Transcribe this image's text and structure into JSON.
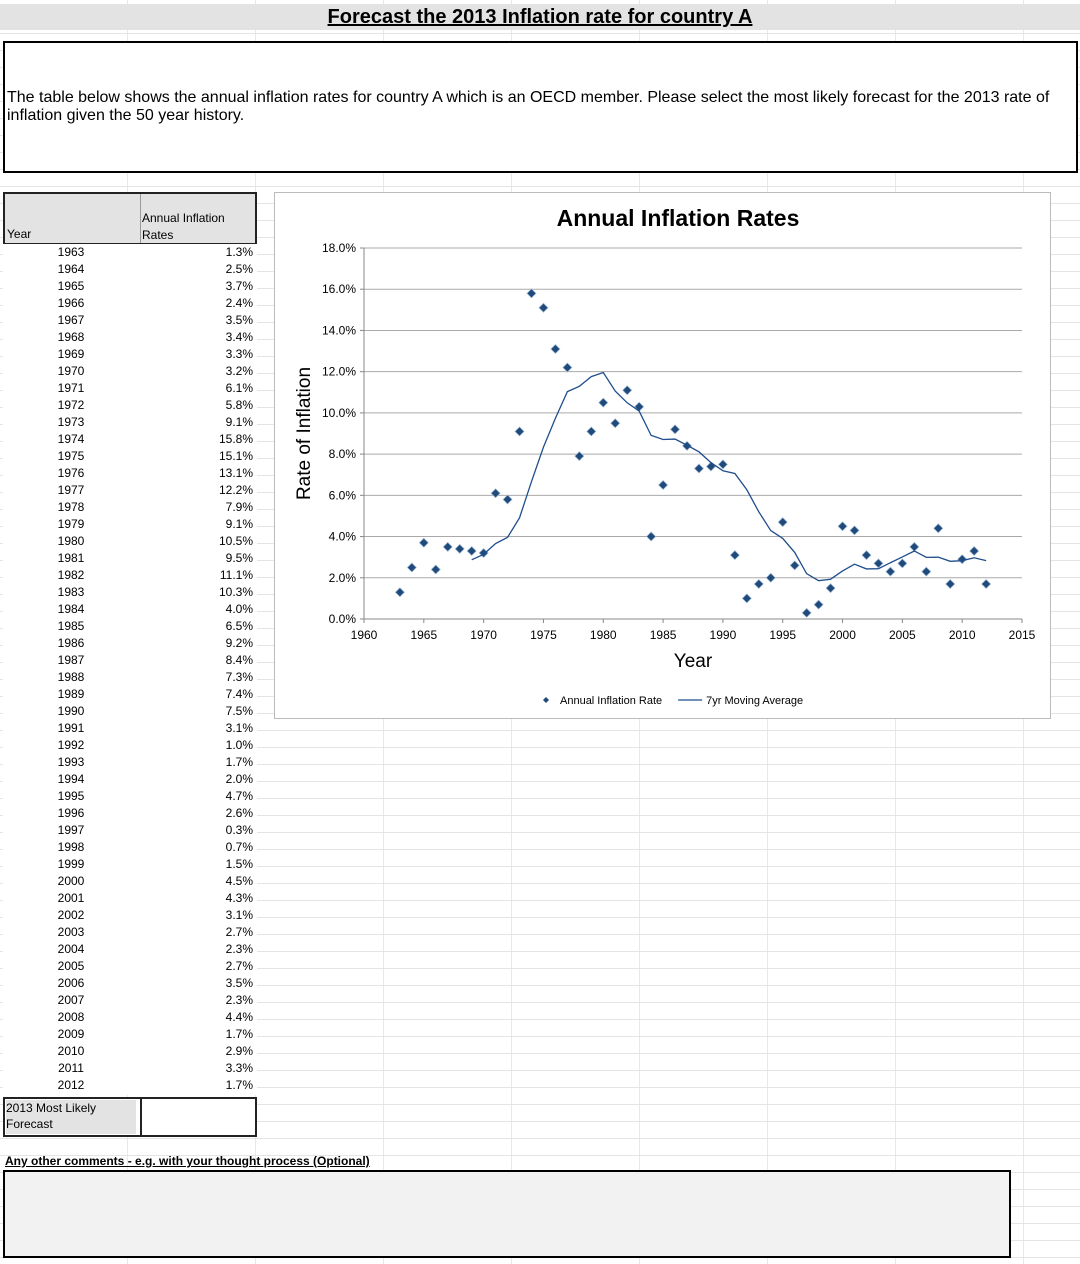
{
  "header": {
    "title": "Forecast the 2013 Inflation rate for country A"
  },
  "instructions": "The table below shows the annual inflation rates for country A which is an OECD member. Please select the most likely forecast for the 2013 rate of inflation given the 50 year history.",
  "table": {
    "headers": [
      "Year",
      "Annual Inflation Rates"
    ],
    "rows": [
      [
        1963,
        "1.3%"
      ],
      [
        1964,
        "2.5%"
      ],
      [
        1965,
        "3.7%"
      ],
      [
        1966,
        "2.4%"
      ],
      [
        1967,
        "3.5%"
      ],
      [
        1968,
        "3.4%"
      ],
      [
        1969,
        "3.3%"
      ],
      [
        1970,
        "3.2%"
      ],
      [
        1971,
        "6.1%"
      ],
      [
        1972,
        "5.8%"
      ],
      [
        1973,
        "9.1%"
      ],
      [
        1974,
        "15.8%"
      ],
      [
        1975,
        "15.1%"
      ],
      [
        1976,
        "13.1%"
      ],
      [
        1977,
        "12.2%"
      ],
      [
        1978,
        "7.9%"
      ],
      [
        1979,
        "9.1%"
      ],
      [
        1980,
        "10.5%"
      ],
      [
        1981,
        "9.5%"
      ],
      [
        1982,
        "11.1%"
      ],
      [
        1983,
        "10.3%"
      ],
      [
        1984,
        "4.0%"
      ],
      [
        1985,
        "6.5%"
      ],
      [
        1986,
        "9.2%"
      ],
      [
        1987,
        "8.4%"
      ],
      [
        1988,
        "7.3%"
      ],
      [
        1989,
        "7.4%"
      ],
      [
        1990,
        "7.5%"
      ],
      [
        1991,
        "3.1%"
      ],
      [
        1992,
        "1.0%"
      ],
      [
        1993,
        "1.7%"
      ],
      [
        1994,
        "2.0%"
      ],
      [
        1995,
        "4.7%"
      ],
      [
        1996,
        "2.6%"
      ],
      [
        1997,
        "0.3%"
      ],
      [
        1998,
        "0.7%"
      ],
      [
        1999,
        "1.5%"
      ],
      [
        2000,
        "4.5%"
      ],
      [
        2001,
        "4.3%"
      ],
      [
        2002,
        "3.1%"
      ],
      [
        2003,
        "2.7%"
      ],
      [
        2004,
        "2.3%"
      ],
      [
        2005,
        "2.7%"
      ],
      [
        2006,
        "3.5%"
      ],
      [
        2007,
        "2.3%"
      ],
      [
        2008,
        "4.4%"
      ],
      [
        2009,
        "1.7%"
      ],
      [
        2010,
        "2.9%"
      ],
      [
        2011,
        "3.3%"
      ],
      [
        2012,
        "1.7%"
      ]
    ],
    "forecast_label": "2013 Most Likely Forecast"
  },
  "comments_label": "Any other comments - e.g. with your thought process (Optional)",
  "chart_data": {
    "type": "scatter",
    "title": "Annual Inflation Rates",
    "x_label": "Year",
    "y_label": "Rate of Inflation",
    "x": [
      1963,
      1964,
      1965,
      1966,
      1967,
      1968,
      1969,
      1970,
      1971,
      1972,
      1973,
      1974,
      1975,
      1976,
      1977,
      1978,
      1979,
      1980,
      1981,
      1982,
      1983,
      1984,
      1985,
      1986,
      1987,
      1988,
      1989,
      1990,
      1991,
      1992,
      1993,
      1994,
      1995,
      1996,
      1997,
      1998,
      1999,
      2000,
      2001,
      2002,
      2003,
      2004,
      2005,
      2006,
      2007,
      2008,
      2009,
      2010,
      2011,
      2012
    ],
    "series": [
      {
        "name": "Annual Inflation Rate",
        "type": "scatter",
        "color": "#1f4a7a",
        "values": [
          1.3,
          2.5,
          3.7,
          2.4,
          3.5,
          3.4,
          3.3,
          3.2,
          6.1,
          5.8,
          9.1,
          15.8,
          15.1,
          13.1,
          12.2,
          7.9,
          9.1,
          10.5,
          9.5,
          11.1,
          10.3,
          4.0,
          6.5,
          9.2,
          8.4,
          7.3,
          7.4,
          7.5,
          3.1,
          1.0,
          1.7,
          2.0,
          4.7,
          2.6,
          0.3,
          0.7,
          1.5,
          4.5,
          4.3,
          3.1,
          2.7,
          2.3,
          2.7,
          3.5,
          2.3,
          4.4,
          1.7,
          2.9,
          3.3,
          1.7
        ]
      },
      {
        "name": "7yr Moving Average",
        "type": "line",
        "color": "#1f4e8c",
        "values": [
          null,
          null,
          null,
          null,
          null,
          null,
          2.87,
          3.14,
          3.66,
          3.96,
          4.91,
          6.67,
          8.34,
          9.74,
          11.03,
          11.29,
          11.76,
          11.96,
          11.06,
          10.49,
          10.09,
          8.91,
          8.71,
          8.73,
          8.43,
          8.11,
          7.59,
          7.19,
          7.06,
          6.27,
          5.2,
          4.29,
          3.91,
          3.23,
          2.2,
          1.86,
          1.93,
          2.33,
          2.66,
          2.43,
          2.44,
          2.73,
          3.01,
          3.3,
          2.99,
          3.0,
          2.8,
          2.83,
          2.97,
          2.83
        ]
      }
    ],
    "xlim": [
      1960,
      2015
    ],
    "xticks": [
      1960,
      1965,
      1970,
      1975,
      1980,
      1985,
      1990,
      1995,
      2000,
      2005,
      2010,
      2015
    ],
    "ylim": [
      0,
      18
    ],
    "yticks": [
      {
        "value": 0,
        "label": "0.0%"
      },
      {
        "value": 2,
        "label": "2.0%"
      },
      {
        "value": 4,
        "label": "4.0%"
      },
      {
        "value": 6,
        "label": "6.0%"
      },
      {
        "value": 8,
        "label": "8.0%"
      },
      {
        "value": 10,
        "label": "10.0%"
      },
      {
        "value": 12,
        "label": "12.0%"
      },
      {
        "value": 14,
        "label": "14.0%"
      },
      {
        "value": 16,
        "label": "16.0%"
      },
      {
        "value": 18,
        "label": "18.0%"
      }
    ],
    "grid": true,
    "legend": "bottom"
  }
}
